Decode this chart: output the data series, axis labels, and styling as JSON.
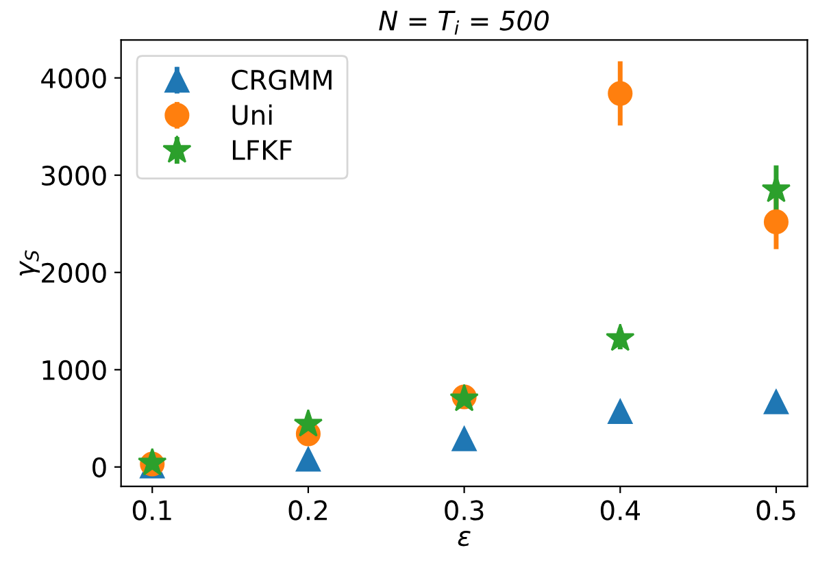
{
  "chart_data": {
    "type": "scatter",
    "title": "N = T$_{i}$ = 500",
    "xlabel": "ε",
    "ylabel": "γ$_{S}$",
    "x": [
      0.1,
      0.2,
      0.3,
      0.4,
      0.5
    ],
    "series": [
      {
        "name": "CRGMM",
        "color": "#1f77b4",
        "marker": "triangle",
        "values": [
          10,
          80,
          290,
          570,
          670
        ],
        "errors": [
          null,
          null,
          null,
          null,
          null
        ]
      },
      {
        "name": "Uni",
        "color": "#ff7f0e",
        "marker": "circle",
        "values": [
          30,
          340,
          720,
          3840,
          2520
        ],
        "errors": [
          null,
          null,
          null,
          330,
          280
        ]
      },
      {
        "name": "LFKF",
        "color": "#2ca02c",
        "marker": "star",
        "values": [
          40,
          440,
          700,
          1320,
          2850
        ],
        "errors": [
          null,
          null,
          null,
          110,
          250
        ]
      }
    ],
    "xlim": [
      0.08,
      0.52
    ],
    "xticks": [
      0.1,
      0.2,
      0.3,
      0.4,
      0.5
    ],
    "ylim": [
      -200,
      4390
    ],
    "yticks": [
      0,
      1000,
      2000,
      3000,
      4000
    ],
    "grid": false,
    "legend": "top left"
  }
}
